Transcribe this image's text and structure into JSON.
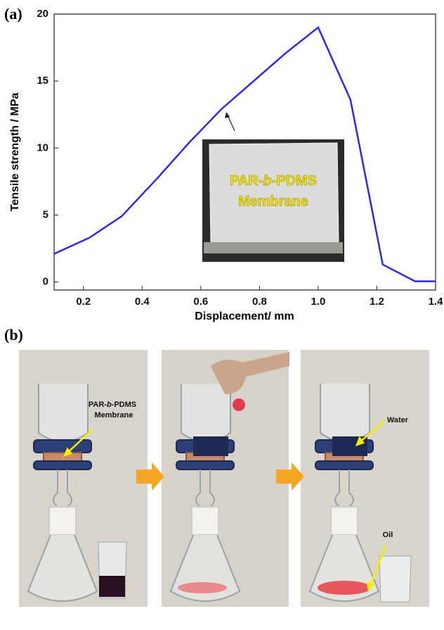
{
  "panel_a_label": "(a)",
  "panel_b_label": "(b)",
  "chart_data": {
    "type": "line",
    "x": [
      0.1,
      0.22,
      0.33,
      0.45,
      0.56,
      0.67,
      0.78,
      0.89,
      1.0,
      1.11,
      1.22,
      1.33,
      1.4
    ],
    "values": [
      2.1,
      3.3,
      4.9,
      7.7,
      10.4,
      12.9,
      15.0,
      17.1,
      19.0,
      13.6,
      1.3,
      0.05,
      0.05
    ],
    "color": "#2b2be6",
    "xlim": [
      0.1,
      1.4
    ],
    "ylim": [
      -0.6,
      20
    ],
    "xticks": [
      0.2,
      0.4,
      0.6,
      0.8,
      {
        "value": 1,
        "label": "1.0"
      },
      1.2,
      1.4
    ],
    "yticks": [
      0,
      5,
      10,
      15,
      20
    ],
    "x_label": "Displacement/ mm",
    "y_label": "Tensile strength / MPa"
  },
  "inset": {
    "line1": [
      "PAR-",
      "b",
      "-PDMS"
    ],
    "line2": "Membrane"
  },
  "photos": {
    "membrane_label": [
      "PAR-",
      "b",
      "-PDMS"
    ],
    "membrane_label_line2": "Membrane",
    "water_label": "Water",
    "oil_label": "Oil"
  }
}
